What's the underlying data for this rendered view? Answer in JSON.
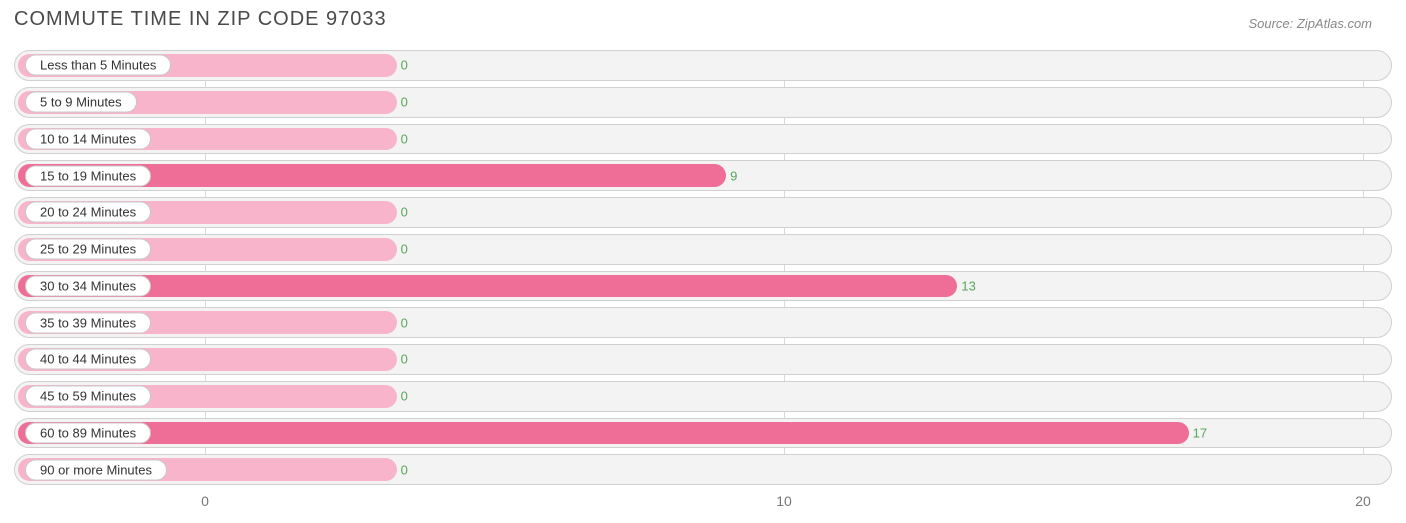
{
  "title": "COMMUTE TIME IN ZIP CODE 97033",
  "source": "Source: ZipAtlas.com",
  "chart": {
    "type": "bar-horizontal",
    "bar_color": "#ef6e98",
    "bar_zero_color": "#f7b4cb",
    "track_bg": "#f3f3f3",
    "track_border": "#d0d0d0",
    "grid_color": "#d9d9d9",
    "value_color": "#5aa65a",
    "tick_color": "#777777",
    "title_color": "#4a4a4a",
    "xmin": -3.3,
    "xmax": 20.5,
    "xticks": [
      0,
      10,
      20
    ],
    "label_pill_width_value_units": 2.6,
    "min_bar_value_units": 3.3,
    "items": [
      {
        "label": "Less than 5 Minutes",
        "value": 0
      },
      {
        "label": "5 to 9 Minutes",
        "value": 0
      },
      {
        "label": "10 to 14 Minutes",
        "value": 0
      },
      {
        "label": "15 to 19 Minutes",
        "value": 9
      },
      {
        "label": "20 to 24 Minutes",
        "value": 0
      },
      {
        "label": "25 to 29 Minutes",
        "value": 0
      },
      {
        "label": "30 to 34 Minutes",
        "value": 13
      },
      {
        "label": "35 to 39 Minutes",
        "value": 0
      },
      {
        "label": "40 to 44 Minutes",
        "value": 0
      },
      {
        "label": "45 to 59 Minutes",
        "value": 0
      },
      {
        "label": "60 to 89 Minutes",
        "value": 17
      },
      {
        "label": "90 or more Minutes",
        "value": 0
      }
    ]
  }
}
